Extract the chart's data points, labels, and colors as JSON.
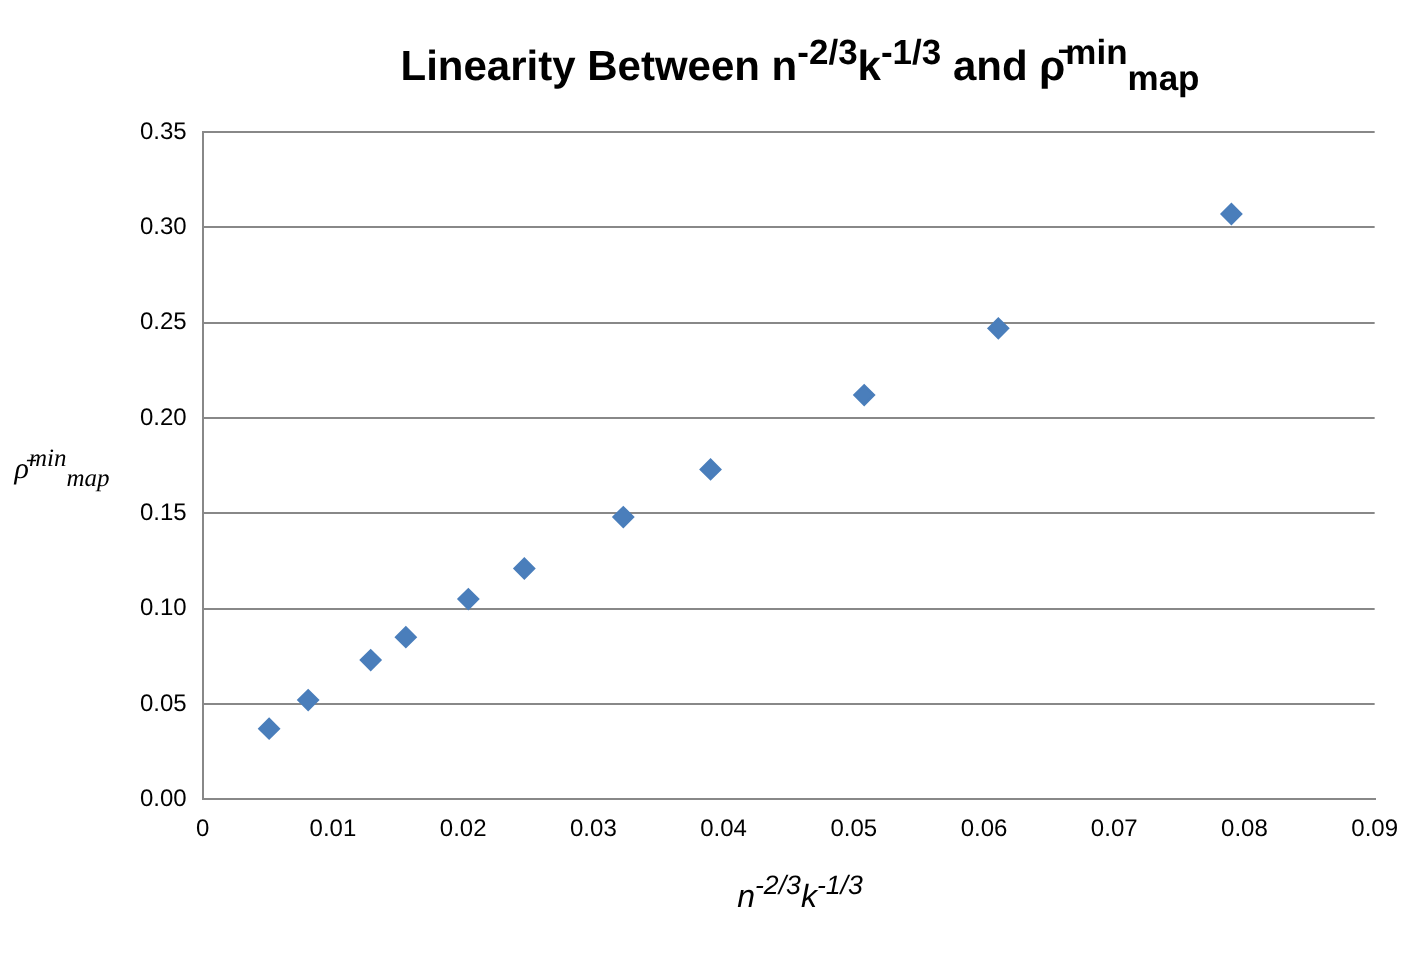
{
  "chart_data": {
    "type": "scatter",
    "title": "Linearity Between n$^{-2/3}$k$^{-1/3}$ and ρ̄$^{min}$$_{map}$",
    "xlabel": "n$^{-2/3}$k$^{-1/3}$",
    "ylabel": "ρ̄$^{min}$$_{map}$",
    "series": [
      {
        "color": "#4a7ebb",
        "x": [
          0.0051,
          0.0081,
          0.0129,
          0.0156,
          0.0204,
          0.0247,
          0.0323,
          0.039,
          0.0508,
          0.0611,
          0.079
        ],
        "values": [
          0.037,
          0.052,
          0.073,
          0.085,
          0.105,
          0.121,
          0.148,
          0.173,
          0.212,
          0.247,
          0.307
        ]
      }
    ],
    "xlim": [
      0,
      0.09
    ],
    "xticks": [
      0,
      0.01,
      0.02,
      0.03,
      0.04,
      0.05,
      0.06,
      0.07,
      0.08,
      0.09
    ],
    "ylim": [
      0,
      0.35
    ],
    "yticks": [
      {
        "value": 0,
        "label": "0.00"
      },
      {
        "value": 0.05,
        "label": "0.05"
      },
      {
        "value": 0.1,
        "label": "0.10"
      },
      {
        "value": 0.15,
        "label": "0.15"
      },
      {
        "value": 0.2,
        "label": "0.20"
      },
      {
        "value": 0.25,
        "label": "0.25"
      },
      {
        "value": 0.3,
        "label": "0.30"
      },
      {
        "value": 0.35,
        "label": "0.35"
      }
    ],
    "grid": "y",
    "legend": false,
    "marker": "diamond"
  }
}
